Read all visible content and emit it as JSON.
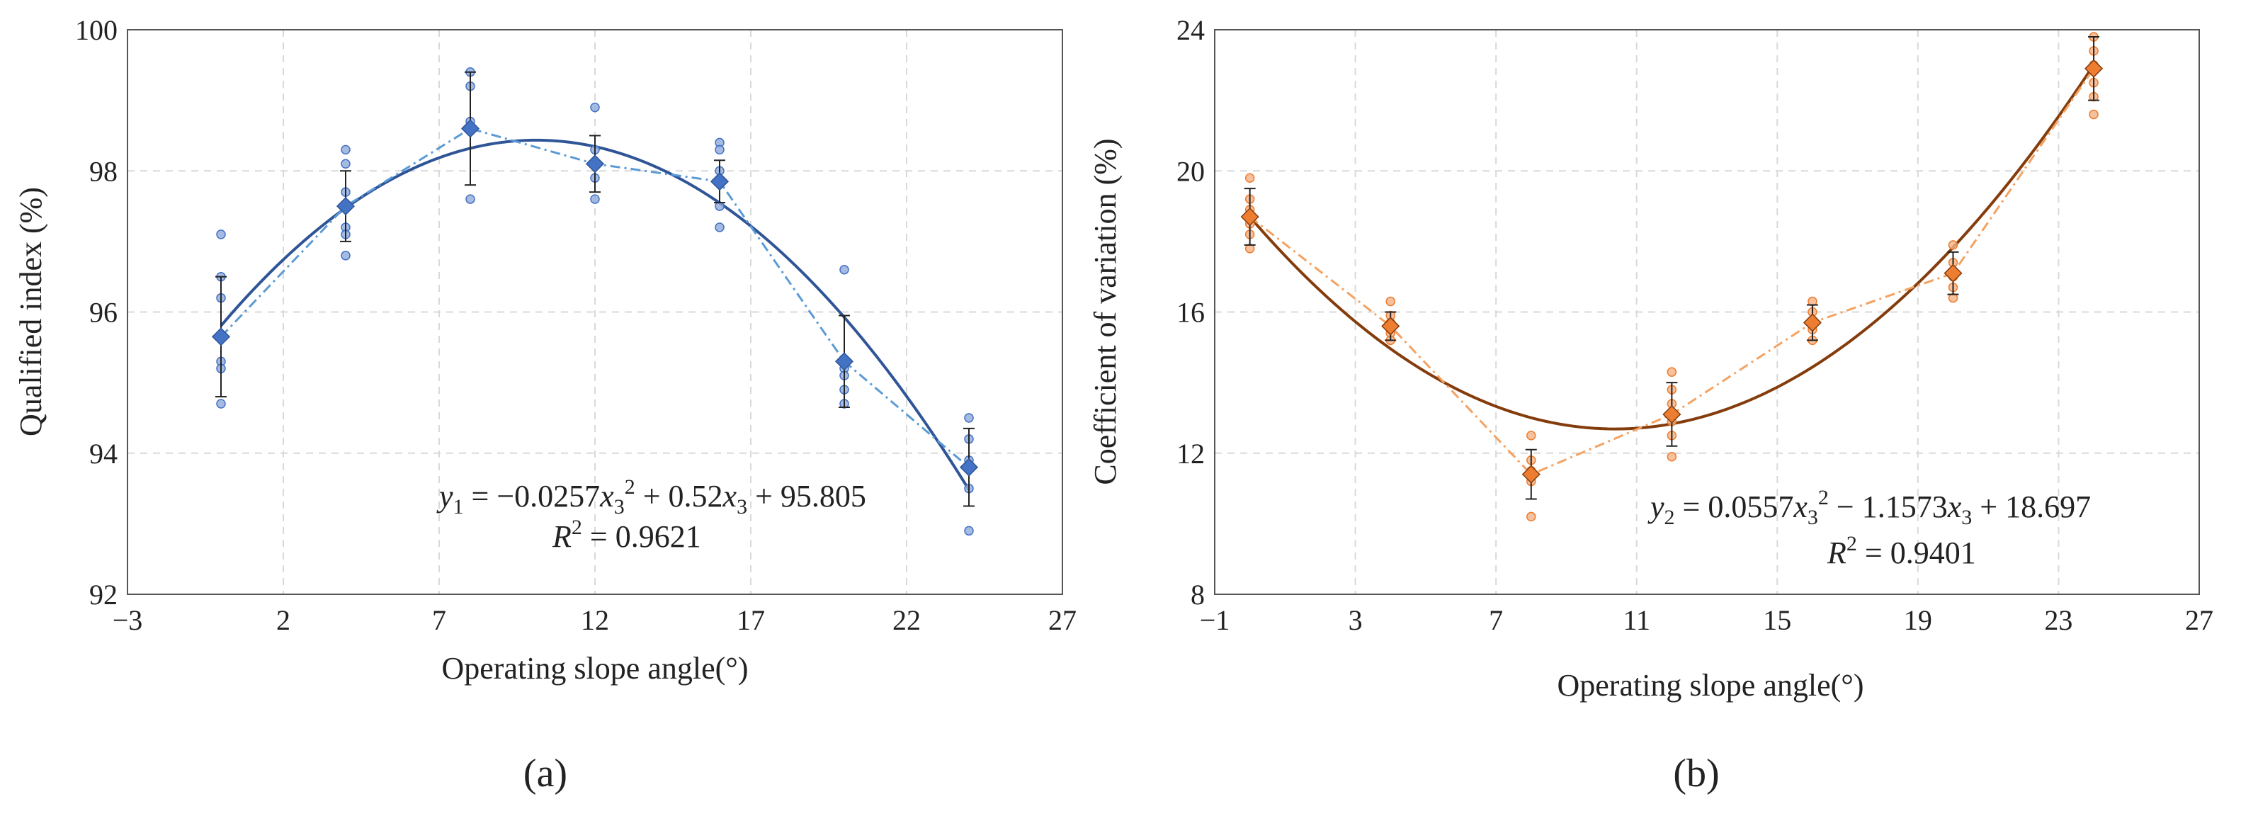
{
  "chart_data": [
    {
      "type": "scatter",
      "panel_label": "(a)",
      "xlabel": "Operating slope angle(°)",
      "ylabel": "Qualified index (%)",
      "xlim": [
        -3,
        27
      ],
      "ylim": [
        92,
        100
      ],
      "xticks": [
        -3,
        2,
        7,
        12,
        17,
        22,
        27
      ],
      "yticks": [
        92,
        94,
        96,
        98,
        100
      ],
      "xtick_labels": [
        "−3",
        "2",
        "7",
        "12",
        "17",
        "22",
        "27"
      ],
      "ytick_labels": [
        "92",
        "94",
        "96",
        "98",
        "100"
      ],
      "grid": true,
      "colors": {
        "mean": "#4472c4",
        "fit": "#2f5597",
        "dash": "#5b9bd5",
        "samples": "#8eaadb",
        "error": "#222222"
      },
      "means": [
        {
          "x": 0,
          "y": 95.65,
          "err": 0.85
        },
        {
          "x": 4,
          "y": 97.5,
          "err": 0.5
        },
        {
          "x": 8,
          "y": 98.6,
          "err": 0.8
        },
        {
          "x": 12,
          "y": 98.1,
          "err": 0.4
        },
        {
          "x": 16,
          "y": 97.85,
          "err": 0.3
        },
        {
          "x": 20,
          "y": 95.3,
          "err": 0.65
        },
        {
          "x": 24,
          "y": 93.8,
          "err": 0.55
        }
      ],
      "samples": [
        {
          "x": 0,
          "values": [
            97.1,
            96.5,
            96.2,
            95.3,
            95.2,
            94.7
          ]
        },
        {
          "x": 4,
          "values": [
            98.3,
            98.1,
            97.7,
            97.2,
            97.1,
            96.8
          ]
        },
        {
          "x": 8,
          "values": [
            99.4,
            99.2,
            98.7,
            98.6,
            97.6
          ]
        },
        {
          "x": 12,
          "values": [
            98.9,
            98.3,
            98.1,
            97.9,
            97.6
          ]
        },
        {
          "x": 16,
          "values": [
            98.4,
            98.3,
            98.0,
            97.5,
            97.2
          ]
        },
        {
          "x": 20,
          "values": [
            96.6,
            95.2,
            95.1,
            94.9,
            94.7
          ]
        },
        {
          "x": 24,
          "values": [
            94.5,
            94.2,
            93.9,
            93.5,
            92.9
          ]
        }
      ],
      "fit": {
        "a": -0.0257,
        "b": 0.52,
        "c": 95.805,
        "x_from": 0,
        "x_to": 24
      },
      "equation": {
        "y_var": "y",
        "y_sub": "1",
        "eq_1": " = −0.0257",
        "eq_x": "x",
        "eq_x_sub": "3",
        "eq_pow": "2",
        "eq_2": " + 0.52",
        "eq_2_x": "x",
        "eq_2_x_sub": "3",
        "eq_3": " + 95.805",
        "r2_var": "R",
        "r2_pow": "2",
        "r2_val": " = 0.9621"
      }
    },
    {
      "type": "scatter",
      "panel_label": "(b)",
      "xlabel": "Operating slope angle(°)",
      "ylabel": "Coefficient of variation (%)",
      "xlim": [
        -1,
        27
      ],
      "ylim": [
        8,
        24
      ],
      "xticks": [
        -1,
        3,
        7,
        11,
        15,
        19,
        23,
        27
      ],
      "yticks": [
        8,
        12,
        16,
        20,
        24
      ],
      "xtick_labels": [
        "−1",
        "3",
        "7",
        "11",
        "15",
        "19",
        "23",
        "27"
      ],
      "ytick_labels": [
        "8",
        "12",
        "16",
        "20",
        "24"
      ],
      "grid": true,
      "colors": {
        "mean": "#ed7d31",
        "fit": "#843c0c",
        "dash": "#f4a261",
        "samples": "#f4b183",
        "error": "#222222"
      },
      "means": [
        {
          "x": 0,
          "y": 18.7,
          "err": 0.8
        },
        {
          "x": 4,
          "y": 15.6,
          "err": 0.4
        },
        {
          "x": 8,
          "y": 11.4,
          "err": 0.7
        },
        {
          "x": 12,
          "y": 13.1,
          "err": 0.9
        },
        {
          "x": 16,
          "y": 15.7,
          "err": 0.5
        },
        {
          "x": 20,
          "y": 17.1,
          "err": 0.6
        },
        {
          "x": 24,
          "y": 22.9,
          "err": 0.9
        }
      ],
      "samples": [
        {
          "x": 0,
          "values": [
            19.8,
            19.2,
            18.9,
            18.5,
            18.2,
            17.8
          ]
        },
        {
          "x": 4,
          "values": [
            16.3,
            15.9,
            15.7,
            15.4,
            15.2
          ]
        },
        {
          "x": 8,
          "values": [
            12.5,
            11.8,
            11.5,
            11.2,
            10.2
          ]
        },
        {
          "x": 12,
          "values": [
            14.3,
            13.8,
            13.4,
            12.9,
            12.5,
            11.9
          ]
        },
        {
          "x": 16,
          "values": [
            16.3,
            16.0,
            15.7,
            15.5,
            15.2
          ]
        },
        {
          "x": 20,
          "values": [
            17.9,
            17.4,
            17.0,
            16.7,
            16.4
          ]
        },
        {
          "x": 24,
          "values": [
            23.8,
            23.4,
            23.0,
            22.5,
            22.1,
            21.6
          ]
        }
      ],
      "fit": {
        "a": 0.0557,
        "b": -1.1573,
        "c": 18.697,
        "x_from": 0,
        "x_to": 24
      },
      "equation": {
        "y_var": "y",
        "y_sub": "2",
        "eq_1": " = 0.0557",
        "eq_x": "x",
        "eq_x_sub": "3",
        "eq_pow": "2",
        "eq_2": " − 1.1573",
        "eq_2_x": "x",
        "eq_2_x_sub": "3",
        "eq_3": " + 18.697",
        "r2_var": "R",
        "r2_pow": "2",
        "r2_val": " = 0.9401"
      }
    }
  ]
}
